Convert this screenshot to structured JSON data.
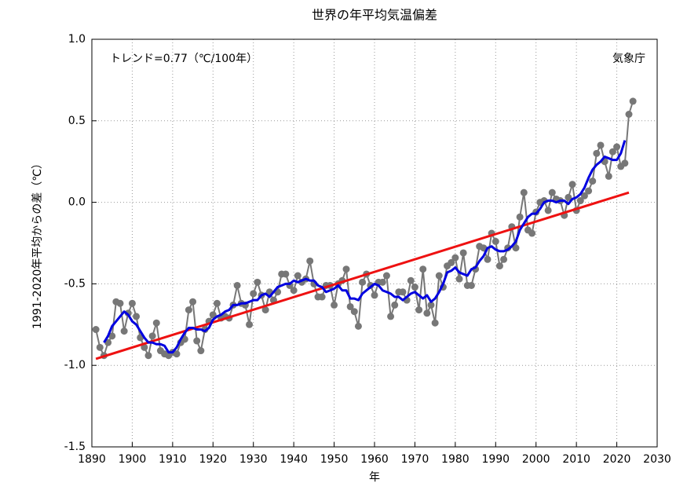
{
  "chart_data": {
    "type": "line",
    "title": "世界の年平均気温偏差",
    "xlabel": "年",
    "ylabel": "1991-2020年平均からの差（℃）",
    "annotations": [
      "トレンド=0.77（℃/100年）",
      "気象庁"
    ],
    "x": [
      1891,
      1892,
      1893,
      1894,
      1895,
      1896,
      1897,
      1898,
      1899,
      1900,
      1901,
      1902,
      1903,
      1904,
      1905,
      1906,
      1907,
      1908,
      1909,
      1910,
      1911,
      1912,
      1913,
      1914,
      1915,
      1916,
      1917,
      1918,
      1919,
      1920,
      1921,
      1922,
      1923,
      1924,
      1925,
      1926,
      1927,
      1928,
      1929,
      1930,
      1931,
      1932,
      1933,
      1934,
      1935,
      1936,
      1937,
      1938,
      1939,
      1940,
      1941,
      1942,
      1943,
      1944,
      1945,
      1946,
      1947,
      1948,
      1949,
      1950,
      1951,
      1952,
      1953,
      1954,
      1955,
      1956,
      1957,
      1958,
      1959,
      1960,
      1961,
      1962,
      1963,
      1964,
      1965,
      1966,
      1967,
      1968,
      1969,
      1970,
      1971,
      1972,
      1973,
      1974,
      1975,
      1976,
      1977,
      1978,
      1979,
      1980,
      1981,
      1982,
      1983,
      1984,
      1985,
      1986,
      1987,
      1988,
      1989,
      1990,
      1991,
      1992,
      1993,
      1994,
      1995,
      1996,
      1997,
      1998,
      1999,
      2000,
      2001,
      2002,
      2003,
      2004,
      2005,
      2006,
      2007,
      2008,
      2009,
      2010,
      2011,
      2012,
      2013,
      2014,
      2015,
      2016,
      2017,
      2018,
      2019,
      2020,
      2021,
      2022,
      2023,
      2024
    ],
    "series": [
      {
        "color": "#777777",
        "markers": true,
        "width": 2,
        "values": [
          -0.78,
          -0.89,
          -0.94,
          -0.86,
          -0.82,
          -0.61,
          -0.62,
          -0.79,
          -0.68,
          -0.62,
          -0.7,
          -0.83,
          -0.89,
          -0.94,
          -0.82,
          -0.74,
          -0.91,
          -0.93,
          -0.94,
          -0.92,
          -0.93,
          -0.86,
          -0.84,
          -0.66,
          -0.61,
          -0.85,
          -0.91,
          -0.78,
          -0.73,
          -0.69,
          -0.62,
          -0.71,
          -0.7,
          -0.71,
          -0.63,
          -0.51,
          -0.62,
          -0.63,
          -0.75,
          -0.56,
          -0.49,
          -0.57,
          -0.66,
          -0.55,
          -0.6,
          -0.55,
          -0.44,
          -0.44,
          -0.51,
          -0.54,
          -0.45,
          -0.49,
          -0.47,
          -0.36,
          -0.5,
          -0.58,
          -0.58,
          -0.51,
          -0.51,
          -0.63,
          -0.5,
          -0.48,
          -0.41,
          -0.64,
          -0.67,
          -0.76,
          -0.49,
          -0.44,
          -0.51,
          -0.57,
          -0.49,
          -0.49,
          -0.45,
          -0.7,
          -0.63,
          -0.55,
          -0.55,
          -0.6,
          -0.48,
          -0.52,
          -0.66,
          -0.41,
          -0.68,
          -0.63,
          -0.74,
          -0.45,
          -0.52,
          -0.39,
          -0.37,
          -0.34,
          -0.47,
          -0.31,
          -0.51,
          -0.51,
          -0.41,
          -0.27,
          -0.28,
          -0.35,
          -0.19,
          -0.24,
          -0.39,
          -0.35,
          -0.28,
          -0.15,
          -0.28,
          -0.09,
          0.06,
          -0.17,
          -0.19,
          -0.06,
          0.0,
          0.01,
          -0.05,
          0.06,
          0.02,
          0.01,
          -0.08,
          0.03,
          0.11,
          -0.05,
          0.01,
          0.04,
          0.07,
          0.13,
          0.3,
          0.35,
          0.25,
          0.16,
          0.31,
          0.34,
          0.22,
          0.24,
          0.54,
          0.62
        ]
      },
      {
        "color": "#0000e0",
        "markers": false,
        "width": 3,
        "values": [
          null,
          null,
          -0.86,
          -0.82,
          -0.76,
          -0.73,
          -0.7,
          -0.67,
          -0.69,
          -0.73,
          -0.75,
          -0.79,
          -0.83,
          -0.86,
          -0.86,
          -0.87,
          -0.87,
          -0.88,
          -0.92,
          -0.92,
          -0.89,
          -0.84,
          -0.8,
          -0.77,
          -0.77,
          -0.78,
          -0.78,
          -0.79,
          -0.77,
          -0.72,
          -0.7,
          -0.69,
          -0.67,
          -0.66,
          -0.63,
          -0.63,
          -0.62,
          -0.62,
          -0.61,
          -0.6,
          -0.6,
          -0.57,
          -0.56,
          -0.58,
          -0.55,
          -0.52,
          -0.51,
          -0.5,
          -0.5,
          -0.48,
          -0.49,
          -0.48,
          -0.47,
          -0.48,
          -0.48,
          -0.51,
          -0.52,
          -0.55,
          -0.54,
          -0.53,
          -0.51,
          -0.54,
          -0.54,
          -0.59,
          -0.59,
          -0.6,
          -0.56,
          -0.54,
          -0.52,
          -0.5,
          -0.51,
          -0.54,
          -0.55,
          -0.56,
          -0.58,
          -0.58,
          -0.6,
          -0.58,
          -0.56,
          -0.55,
          -0.57,
          -0.59,
          -0.57,
          -0.61,
          -0.59,
          -0.55,
          -0.5,
          -0.43,
          -0.42,
          -0.4,
          -0.43,
          -0.44,
          -0.45,
          -0.41,
          -0.4,
          -0.36,
          -0.33,
          -0.28,
          -0.27,
          -0.29,
          -0.3,
          -0.3,
          -0.29,
          -0.27,
          -0.24,
          -0.17,
          -0.13,
          -0.09,
          -0.07,
          -0.07,
          -0.04,
          0.0,
          0.01,
          0.01,
          0.0,
          0.01,
          0.01,
          -0.01,
          0.02,
          0.03,
          0.05,
          0.09,
          0.15,
          0.2,
          0.23,
          0.25,
          0.28,
          0.27,
          0.26,
          0.26,
          0.3,
          0.38,
          null,
          null
        ]
      }
    ],
    "trend": {
      "color": "#ee1111",
      "x": [
        1891,
        2023
      ],
      "values": [
        -0.96,
        0.06
      ]
    },
    "xlim": [
      1890,
      2030
    ],
    "xticks": [
      1890,
      1900,
      1910,
      1920,
      1930,
      1940,
      1950,
      1960,
      1970,
      1980,
      1990,
      2000,
      2010,
      2020,
      2030
    ],
    "ylim": [
      -1.5,
      1.0
    ],
    "yticks": [
      {
        "value": 1.0,
        "label": "1.0"
      },
      0.5,
      {
        "value": 0.0,
        "label": "0.0"
      },
      -0.5,
      {
        "value": -1.0,
        "label": "-1.0"
      },
      -1.5
    ],
    "grid": true
  }
}
